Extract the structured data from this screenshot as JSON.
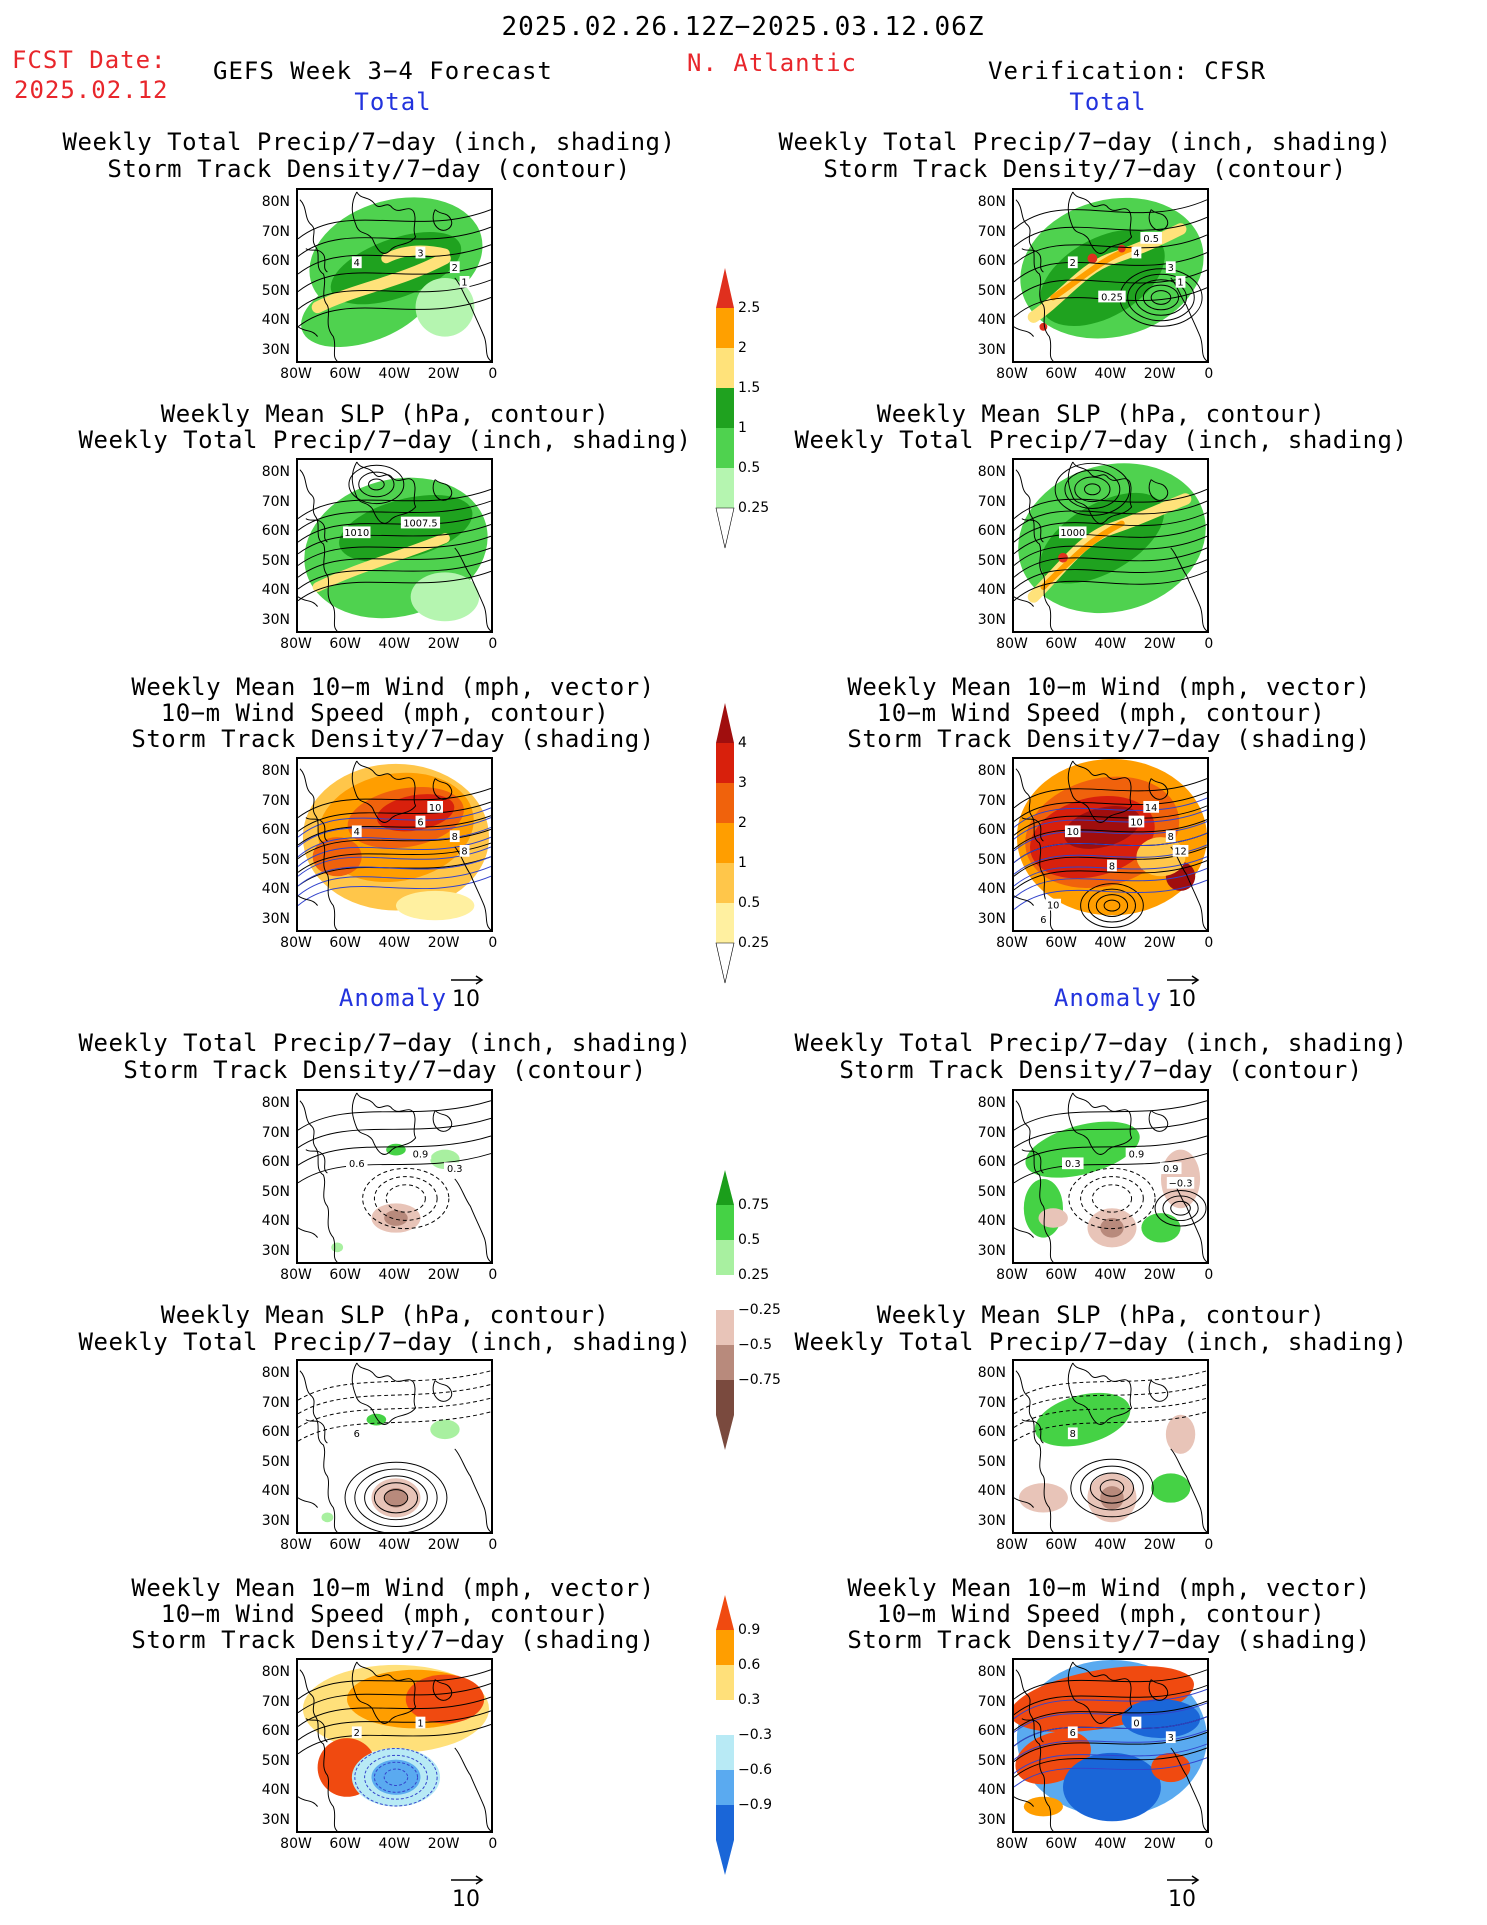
{
  "header": {
    "period": "2025.02.26.12Z−2025.03.12.06Z",
    "fcst_label": "FCST Date:",
    "fcst_date": "2025.02.12",
    "model": "GEFS Week 3−4 Forecast",
    "region": "N. Atlantic",
    "verification": "Verification: CFSR"
  },
  "sections": {
    "total": "Total",
    "anomaly": "Anomaly"
  },
  "titles": {
    "precip_track": [
      "Weekly Total Precip/7−day (inch, shading)",
      "Storm Track Density/7−day (contour)"
    ],
    "slp_precip": [
      "Weekly Mean SLP (hPa, contour)",
      "Weekly Total Precip/7−day (inch, shading)"
    ],
    "wind_track": [
      "Weekly Mean 10−m Wind (mph, vector)",
      "10−m Wind Speed (mph, contour)",
      "Storm Track Density/7−day (shading)"
    ]
  },
  "axes": {
    "lat": [
      "80N",
      "70N",
      "60N",
      "50N",
      "40N",
      "30N"
    ],
    "lon": [
      "80W",
      "60W",
      "40W",
      "20W",
      "0"
    ]
  },
  "vector_ref": "10",
  "colorbars": {
    "precip_total": {
      "labels": [
        "2.5",
        "2",
        "1.5",
        "1",
        "0.5",
        "0.25"
      ],
      "colors": [
        "#e0301e",
        "#ffa000",
        "#ffe27a",
        "#1fa21f",
        "#4fd24f",
        "#b5f5b0"
      ]
    },
    "track_total": {
      "labels": [
        "4",
        "3",
        "2",
        "1",
        "0.5",
        "0.25"
      ],
      "colors": [
        "#a00e0e",
        "#d8200c",
        "#f0620c",
        "#ff9e00",
        "#ffc64a",
        "#fff0a0"
      ]
    },
    "precip_anom": {
      "labels": [
        "0.75",
        "0.5",
        "0.25",
        "−0.25",
        "−0.5",
        "−0.75"
      ],
      "colors": [
        "#1b9e1b",
        "#45d245",
        "#a8f0a0",
        "#ffffff",
        "#e8c4b8",
        "#b88a7c",
        "#7a4a3e"
      ]
    },
    "wind_anom": {
      "labels": [
        "0.9",
        "0.6",
        "0.3",
        "−0.3",
        "−0.6",
        "−0.9"
      ],
      "colors": [
        "#f04a10",
        "#ff9e00",
        "#ffe07a",
        "#ffffff",
        "#b8eaf5",
        "#5aaaf0",
        "#1a66d8"
      ]
    }
  },
  "panel_labels": {
    "r1_left": [
      "4",
      "3",
      "2",
      "1"
    ],
    "r1_right": [
      "2",
      "4",
      "3",
      "1",
      "0.5",
      "0.25"
    ],
    "r2_left": [
      "1010",
      "1007.5"
    ],
    "r2_right": [
      "1000"
    ],
    "r3_left": [
      "4",
      "6",
      "8",
      "8",
      "10"
    ],
    "r3_right": [
      "10",
      "10",
      "8",
      "12",
      "14",
      "8",
      "10",
      "6"
    ],
    "r4_left": [
      "0.6",
      "0.9",
      "0.3"
    ],
    "r4_right": [
      "0.3",
      "0.9",
      "0.9",
      "−0.3"
    ],
    "r5_left": [
      "6"
    ],
    "r5_right": [
      "8"
    ],
    "r6_left": [
      "2",
      "1"
    ],
    "r6_right": [
      "6",
      "0",
      "3"
    ]
  },
  "colors": {
    "accent_red": "#e8262b",
    "accent_blue": "#2233dd"
  }
}
